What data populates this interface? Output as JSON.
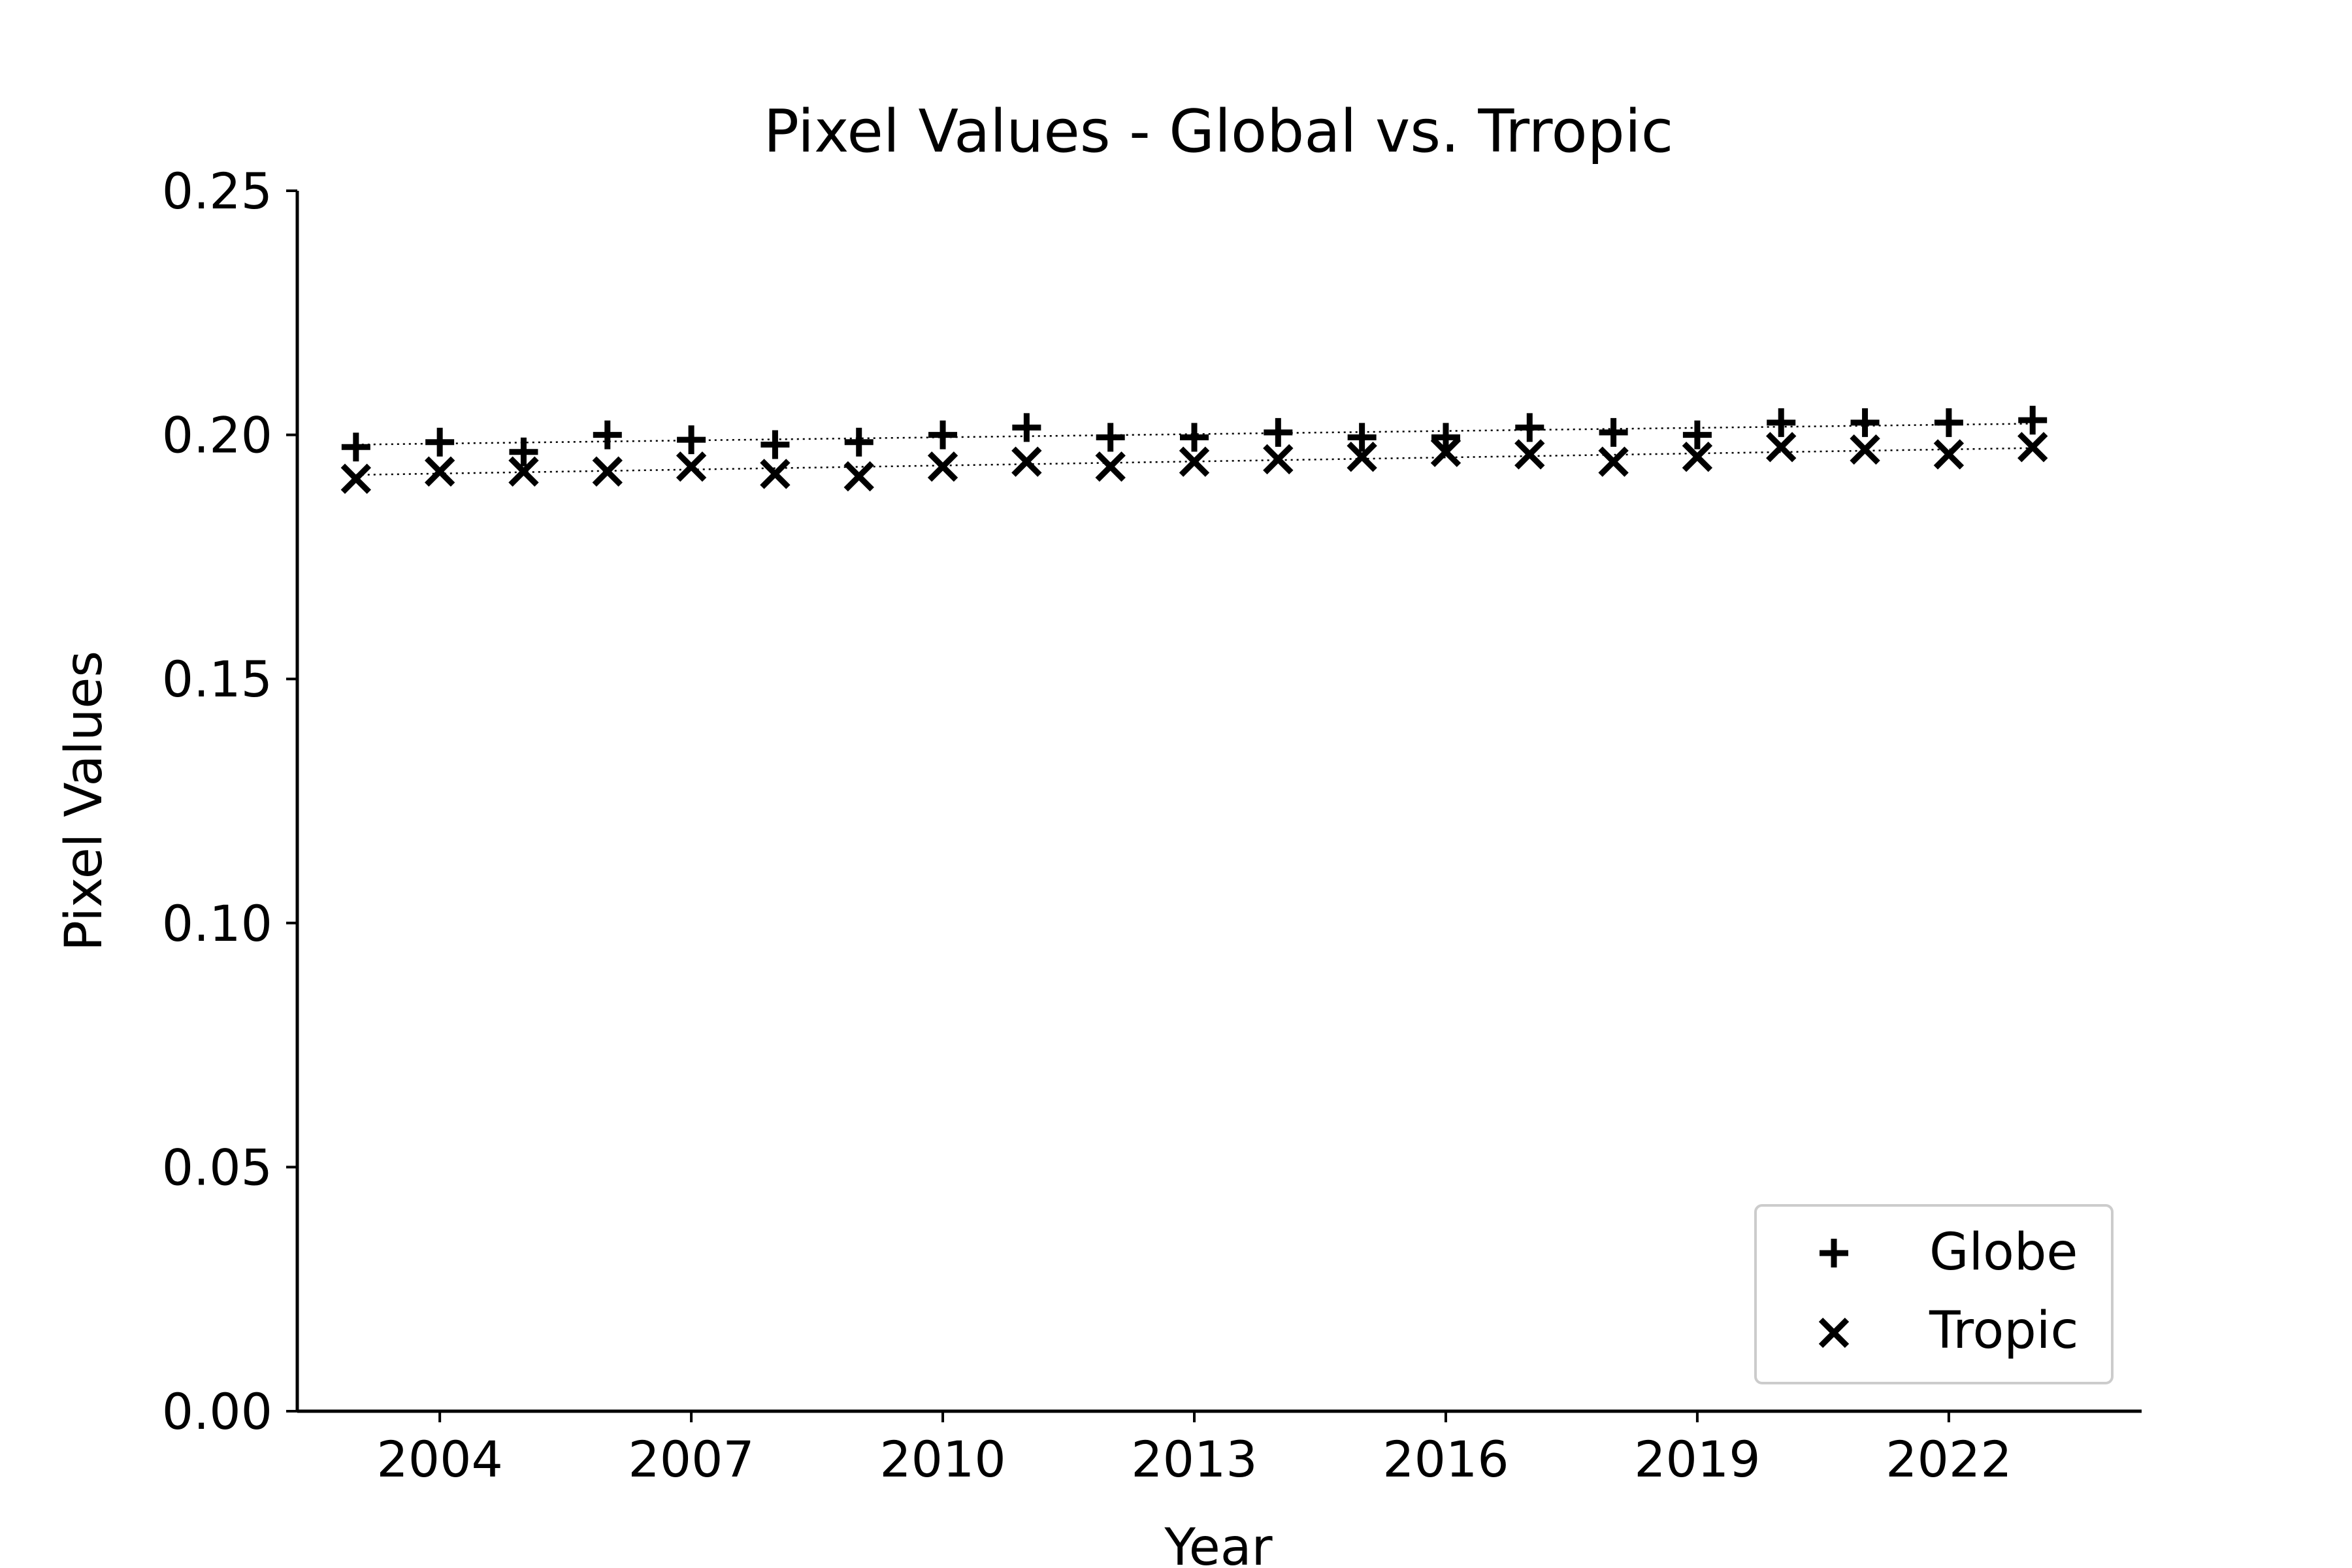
{
  "chart_data": {
    "type": "scatter",
    "title": "Pixel Values - Global vs. Trropic",
    "xlabel": "Year",
    "ylabel": "Pixel Values",
    "xlim": [
      2002.3,
      2024.3
    ],
    "ylim": [
      0.0,
      0.25
    ],
    "xticks": [
      2004,
      2007,
      2010,
      2013,
      2016,
      2019,
      2022
    ],
    "yticks": [
      0.0,
      0.05,
      0.1,
      0.15,
      0.2,
      0.25
    ],
    "ytick_labels": [
      "0.00",
      "0.05",
      "0.10",
      "0.15",
      "0.20",
      "0.25"
    ],
    "grid": false,
    "legend_position": "lower-right",
    "x": [
      2003,
      2004,
      2005,
      2006,
      2007,
      2008,
      2009,
      2010,
      2011,
      2012,
      2013,
      2014,
      2015,
      2016,
      2017,
      2018,
      2019,
      2020,
      2021,
      2022,
      2023
    ],
    "series": [
      {
        "name": "Globe",
        "marker": "plus",
        "color": "#000000",
        "values": [
          0.1975,
          0.1985,
          0.1965,
          0.2,
          0.199,
          0.198,
          0.1985,
          0.2,
          0.2015,
          0.1995,
          0.1995,
          0.2005,
          0.1995,
          0.1995,
          0.2015,
          0.2005,
          0.2,
          0.2025,
          0.2025,
          0.2025,
          0.203
        ],
        "trend": [
          0.198,
          0.2023
        ]
      },
      {
        "name": "Tropic",
        "marker": "x",
        "color": "#000000",
        "values": [
          0.191,
          0.1925,
          0.1925,
          0.1925,
          0.1935,
          0.192,
          0.1915,
          0.1935,
          0.1945,
          0.1935,
          0.1945,
          0.195,
          0.1955,
          0.1965,
          0.196,
          0.1945,
          0.1955,
          0.1975,
          0.197,
          0.196,
          0.1975
        ],
        "trend": [
          0.1918,
          0.1973
        ]
      }
    ]
  }
}
